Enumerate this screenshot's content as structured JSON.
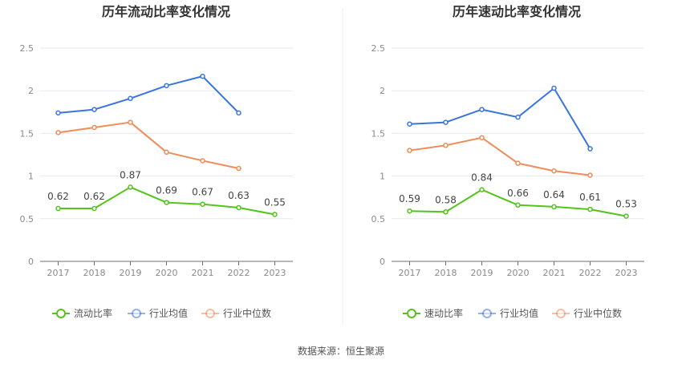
{
  "source_text": "数据来源：恒生聚源",
  "chart_data": [
    {
      "type": "line",
      "title": "历年流动比率变化情况",
      "categories": [
        "2017",
        "2018",
        "2019",
        "2020",
        "2021",
        "2022",
        "2023"
      ],
      "ylim": [
        0,
        2.5
      ],
      "yticks": [
        "0",
        "0.5",
        "1",
        "1.5",
        "2",
        "2.5"
      ],
      "grid": true,
      "legend_position": "bottom",
      "series": [
        {
          "name": "流动比率",
          "color": "#52c41a",
          "values": [
            0.62,
            0.62,
            0.87,
            0.69,
            0.67,
            0.63,
            0.55
          ],
          "labels": [
            "0.62",
            "0.62",
            "0.87",
            "0.69",
            "0.67",
            "0.63",
            "0.55"
          ]
        },
        {
          "name": "行业均值",
          "color": "#3a75dc",
          "values": [
            1.74,
            1.78,
            1.91,
            2.06,
            2.17,
            1.74,
            null
          ]
        },
        {
          "name": "行业中位数",
          "color": "#f08c5a",
          "values": [
            1.51,
            1.57,
            1.63,
            1.28,
            1.18,
            1.09,
            null
          ]
        }
      ]
    },
    {
      "type": "line",
      "title": "历年速动比率变化情况",
      "categories": [
        "2017",
        "2018",
        "2019",
        "2020",
        "2021",
        "2022",
        "2023"
      ],
      "ylim": [
        0,
        2.5
      ],
      "yticks": [
        "0",
        "0.5",
        "1",
        "1.5",
        "2",
        "2.5"
      ],
      "grid": true,
      "legend_position": "bottom",
      "series": [
        {
          "name": "速动比率",
          "color": "#52c41a",
          "values": [
            0.59,
            0.58,
            0.84,
            0.66,
            0.64,
            0.61,
            0.53
          ],
          "labels": [
            "0.59",
            "0.58",
            "0.84",
            "0.66",
            "0.64",
            "0.61",
            "0.53"
          ]
        },
        {
          "name": "行业均值",
          "color": "#3a75dc",
          "values": [
            1.61,
            1.63,
            1.78,
            1.69,
            2.03,
            1.32,
            null
          ]
        },
        {
          "name": "行业中位数",
          "color": "#f08c5a",
          "values": [
            1.3,
            1.36,
            1.45,
            1.15,
            1.06,
            1.01,
            null
          ]
        }
      ]
    }
  ]
}
